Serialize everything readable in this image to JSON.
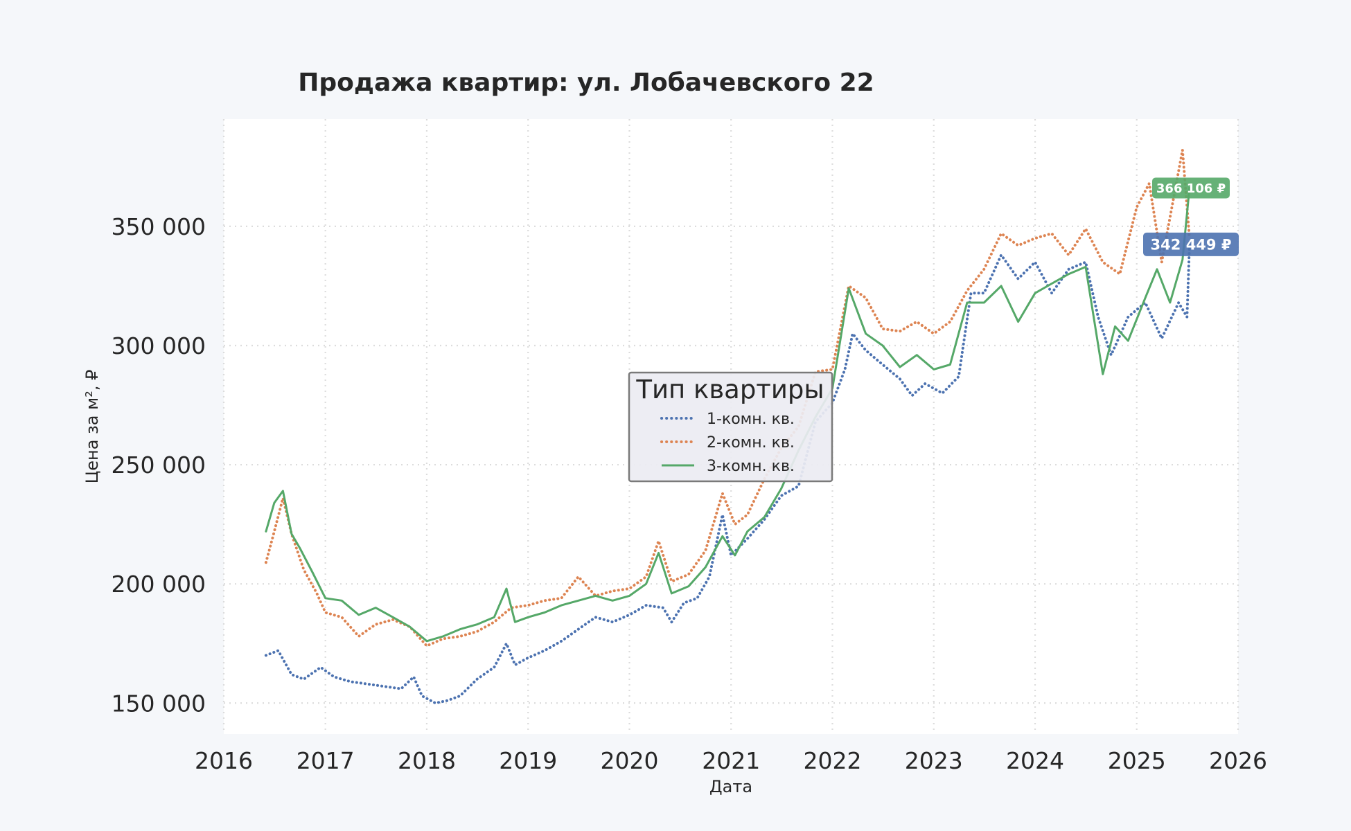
{
  "chart_data": {
    "type": "line",
    "title": "Продажа квартир: ул. Лобачевского 22",
    "xlabel": "Дата",
    "ylabel": "Цена за м², ₽",
    "xlim": [
      "2016-01-01",
      "2026-01-01"
    ],
    "ylim": [
      137000,
      395000
    ],
    "x_ticks": [
      "2016",
      "2017",
      "2018",
      "2019",
      "2020",
      "2021",
      "2022",
      "2023",
      "2024",
      "2025",
      "2026"
    ],
    "y_ticks": [
      150000,
      200000,
      250000,
      300000,
      350000
    ],
    "y_tick_labels": [
      "150 000",
      "200 000",
      "250 000",
      "300 000",
      "350 000"
    ],
    "grid": true,
    "legend": {
      "title": "Тип квартиры",
      "placement": "center"
    },
    "series": [
      {
        "name": "1-комн. кв.",
        "color": "#4c72b0",
        "style": "dotted",
        "points": [
          [
            "2016-06-01",
            170000
          ],
          [
            "2016-07-15",
            172000
          ],
          [
            "2016-09-01",
            162000
          ],
          [
            "2016-10-15",
            160000
          ],
          [
            "2016-12-15",
            165000
          ],
          [
            "2017-02-01",
            161000
          ],
          [
            "2017-04-01",
            159000
          ],
          [
            "2017-06-01",
            158000
          ],
          [
            "2017-08-01",
            157000
          ],
          [
            "2017-10-01",
            156000
          ],
          [
            "2017-11-15",
            161000
          ],
          [
            "2017-12-15",
            153000
          ],
          [
            "2018-02-01",
            150000
          ],
          [
            "2018-03-15",
            151000
          ],
          [
            "2018-05-01",
            153000
          ],
          [
            "2018-07-01",
            160000
          ],
          [
            "2018-09-01",
            165000
          ],
          [
            "2018-10-15",
            175000
          ],
          [
            "2018-11-15",
            166000
          ],
          [
            "2019-01-01",
            169000
          ],
          [
            "2019-03-01",
            172000
          ],
          [
            "2019-05-01",
            176000
          ],
          [
            "2019-07-01",
            181000
          ],
          [
            "2019-09-01",
            186000
          ],
          [
            "2019-11-01",
            184000
          ],
          [
            "2020-01-01",
            187000
          ],
          [
            "2020-03-01",
            191000
          ],
          [
            "2020-05-01",
            190000
          ],
          [
            "2020-06-01",
            184000
          ],
          [
            "2020-07-15",
            192000
          ],
          [
            "2020-09-01",
            194000
          ],
          [
            "2020-10-15",
            203000
          ],
          [
            "2020-12-01",
            229000
          ],
          [
            "2021-01-01",
            212000
          ],
          [
            "2021-03-01",
            219000
          ],
          [
            "2021-05-01",
            227000
          ],
          [
            "2021-07-01",
            237000
          ],
          [
            "2021-09-01",
            241000
          ],
          [
            "2021-11-01",
            268000
          ],
          [
            "2022-01-01",
            276000
          ],
          [
            "2022-02-15",
            290000
          ],
          [
            "2022-03-15",
            305000
          ],
          [
            "2022-05-01",
            298000
          ],
          [
            "2022-07-01",
            292000
          ],
          [
            "2022-09-01",
            286000
          ],
          [
            "2022-10-15",
            279000
          ],
          [
            "2022-12-01",
            284000
          ],
          [
            "2023-02-01",
            280000
          ],
          [
            "2023-04-01",
            287000
          ],
          [
            "2023-05-15",
            322000
          ],
          [
            "2023-07-01",
            322000
          ],
          [
            "2023-09-01",
            338000
          ],
          [
            "2023-11-01",
            328000
          ],
          [
            "2024-01-01",
            335000
          ],
          [
            "2024-03-01",
            322000
          ],
          [
            "2024-05-01",
            332000
          ],
          [
            "2024-07-01",
            335000
          ],
          [
            "2024-08-15",
            312000
          ],
          [
            "2024-10-01",
            296000
          ],
          [
            "2024-12-01",
            312000
          ],
          [
            "2025-02-01",
            318000
          ],
          [
            "2025-04-01",
            303000
          ],
          [
            "2025-06-01",
            318000
          ],
          [
            "2025-07-01",
            312000
          ],
          [
            "2025-07-10",
            342449
          ]
        ]
      },
      {
        "name": "2-комн. кв.",
        "color": "#dd8452",
        "style": "dotted",
        "points": [
          [
            "2016-06-01",
            209000
          ],
          [
            "2016-07-01",
            222000
          ],
          [
            "2016-08-01",
            236000
          ],
          [
            "2016-09-01",
            221000
          ],
          [
            "2016-10-15",
            206000
          ],
          [
            "2016-12-01",
            196000
          ],
          [
            "2017-01-01",
            188000
          ],
          [
            "2017-03-01",
            186000
          ],
          [
            "2017-05-01",
            178000
          ],
          [
            "2017-07-01",
            183000
          ],
          [
            "2017-09-01",
            185000
          ],
          [
            "2017-11-01",
            182000
          ],
          [
            "2018-01-01",
            174000
          ],
          [
            "2018-03-01",
            177000
          ],
          [
            "2018-05-01",
            178000
          ],
          [
            "2018-07-01",
            180000
          ],
          [
            "2018-09-01",
            184000
          ],
          [
            "2018-11-01",
            190000
          ],
          [
            "2019-01-01",
            191000
          ],
          [
            "2019-03-01",
            193000
          ],
          [
            "2019-05-01",
            194000
          ],
          [
            "2019-07-01",
            203000
          ],
          [
            "2019-09-01",
            195000
          ],
          [
            "2019-11-01",
            197000
          ],
          [
            "2020-01-01",
            198000
          ],
          [
            "2020-03-01",
            203000
          ],
          [
            "2020-04-15",
            218000
          ],
          [
            "2020-06-01",
            201000
          ],
          [
            "2020-08-01",
            204000
          ],
          [
            "2020-10-01",
            214000
          ],
          [
            "2020-12-01",
            238000
          ],
          [
            "2021-01-15",
            225000
          ],
          [
            "2021-03-01",
            229000
          ],
          [
            "2021-05-01",
            244000
          ],
          [
            "2021-07-01",
            257000
          ],
          [
            "2021-09-01",
            266000
          ],
          [
            "2021-11-01",
            289000
          ],
          [
            "2022-01-01",
            290000
          ],
          [
            "2022-03-01",
            325000
          ],
          [
            "2022-05-01",
            320000
          ],
          [
            "2022-07-01",
            307000
          ],
          [
            "2022-09-01",
            306000
          ],
          [
            "2022-11-01",
            310000
          ],
          [
            "2023-01-01",
            305000
          ],
          [
            "2023-03-01",
            310000
          ],
          [
            "2023-05-01",
            323000
          ],
          [
            "2023-07-01",
            332000
          ],
          [
            "2023-09-01",
            347000
          ],
          [
            "2023-11-01",
            342000
          ],
          [
            "2024-01-01",
            345000
          ],
          [
            "2024-03-01",
            347000
          ],
          [
            "2024-05-01",
            338000
          ],
          [
            "2024-07-01",
            349000
          ],
          [
            "2024-09-01",
            335000
          ],
          [
            "2024-11-01",
            330000
          ],
          [
            "2025-01-01",
            358000
          ],
          [
            "2025-02-15",
            368000
          ],
          [
            "2025-04-01",
            335000
          ],
          [
            "2025-06-15",
            382000
          ],
          [
            "2025-07-10",
            345000
          ]
        ]
      },
      {
        "name": "3-комн. кв.",
        "color": "#55a868",
        "style": "solid",
        "points": [
          [
            "2016-06-01",
            222000
          ],
          [
            "2016-07-01",
            234000
          ],
          [
            "2016-08-01",
            239000
          ],
          [
            "2016-09-01",
            221000
          ],
          [
            "2016-10-01",
            215000
          ],
          [
            "2016-11-15",
            205000
          ],
          [
            "2017-01-01",
            194000
          ],
          [
            "2017-03-01",
            193000
          ],
          [
            "2017-05-01",
            187000
          ],
          [
            "2017-07-01",
            190000
          ],
          [
            "2017-09-01",
            186000
          ],
          [
            "2017-11-01",
            182000
          ],
          [
            "2018-01-01",
            176000
          ],
          [
            "2018-03-01",
            178000
          ],
          [
            "2018-05-01",
            181000
          ],
          [
            "2018-07-01",
            183000
          ],
          [
            "2018-09-01",
            186000
          ],
          [
            "2018-10-15",
            198000
          ],
          [
            "2018-11-15",
            184000
          ],
          [
            "2019-01-01",
            186000
          ],
          [
            "2019-03-01",
            188000
          ],
          [
            "2019-05-01",
            191000
          ],
          [
            "2019-07-01",
            193000
          ],
          [
            "2019-09-01",
            195000
          ],
          [
            "2019-11-01",
            193000
          ],
          [
            "2020-01-01",
            195000
          ],
          [
            "2020-03-01",
            200000
          ],
          [
            "2020-04-15",
            213000
          ],
          [
            "2020-06-01",
            196000
          ],
          [
            "2020-08-01",
            199000
          ],
          [
            "2020-10-01",
            207000
          ],
          [
            "2020-12-01",
            220000
          ],
          [
            "2021-01-15",
            212000
          ],
          [
            "2021-03-01",
            222000
          ],
          [
            "2021-05-01",
            228000
          ],
          [
            "2021-07-01",
            240000
          ],
          [
            "2021-09-01",
            256000
          ],
          [
            "2021-11-01",
            270000
          ],
          [
            "2022-01-01",
            282000
          ],
          [
            "2022-03-01",
            324000
          ],
          [
            "2022-05-01",
            305000
          ],
          [
            "2022-07-01",
            300000
          ],
          [
            "2022-09-01",
            291000
          ],
          [
            "2022-11-01",
            296000
          ],
          [
            "2023-01-01",
            290000
          ],
          [
            "2023-03-01",
            292000
          ],
          [
            "2023-05-01",
            318000
          ],
          [
            "2023-07-01",
            318000
          ],
          [
            "2023-09-01",
            325000
          ],
          [
            "2023-11-01",
            310000
          ],
          [
            "2024-01-01",
            322000
          ],
          [
            "2024-03-01",
            326000
          ],
          [
            "2024-05-01",
            330000
          ],
          [
            "2024-07-01",
            333000
          ],
          [
            "2024-09-01",
            288000
          ],
          [
            "2024-10-15",
            308000
          ],
          [
            "2024-12-01",
            302000
          ],
          [
            "2025-02-01",
            320000
          ],
          [
            "2025-03-15",
            332000
          ],
          [
            "2025-05-01",
            318000
          ],
          [
            "2025-06-15",
            336000
          ],
          [
            "2025-07-10",
            366106
          ]
        ]
      }
    ],
    "annotations": [
      {
        "text": "366 106 ₽",
        "x": "2025-07-10",
        "y": 366106,
        "color": "#55a868"
      },
      {
        "text": "342 449 ₽",
        "x": "2025-07-10",
        "y": 342449,
        "color": "#4c72b0"
      }
    ]
  }
}
